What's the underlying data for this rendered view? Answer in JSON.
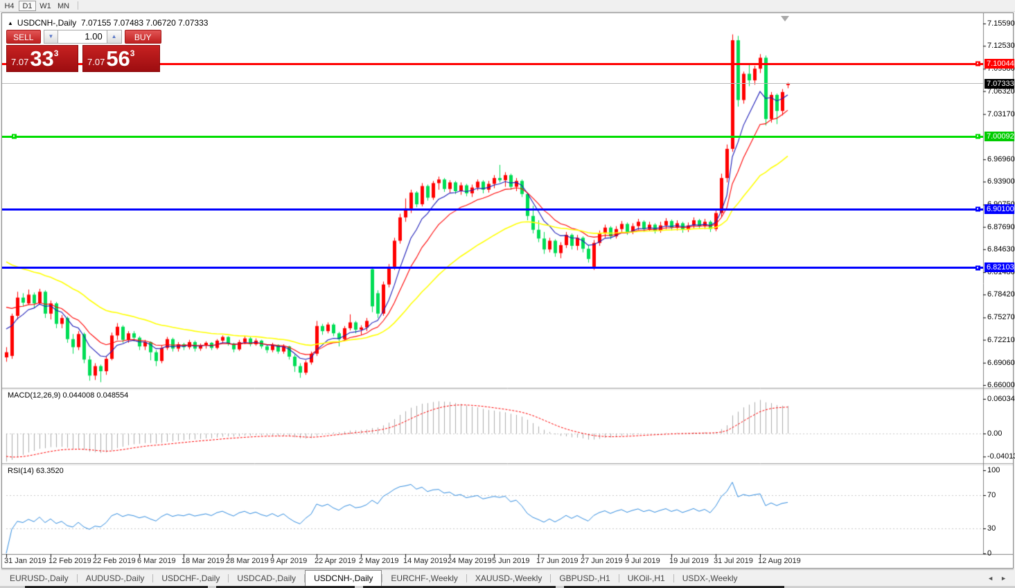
{
  "toolbar": {
    "timeframes": [
      "H4",
      "D1",
      "W1",
      "MN"
    ],
    "active": "D1"
  },
  "chart": {
    "symbol_period": "USDCNH-,Daily",
    "ohlc_line": "7.07155 7.07483 7.06720 7.07333",
    "collapse_arrow": "▲"
  },
  "trade_panel": {
    "sell_label": "SELL",
    "buy_label": "BUY",
    "volume": "1.00",
    "spin_down": "▼",
    "spin_up": "▲",
    "bid": {
      "prefix": "7.07",
      "big": "33",
      "sup": "3"
    },
    "ask": {
      "prefix": "7.07",
      "big": "56",
      "sup": "3"
    }
  },
  "macd_panel": {
    "label": "MACD(12,26,9) 0.044008 0.048554"
  },
  "rsi_panel": {
    "label": "RSI(14) 63.3520"
  },
  "tabs": {
    "items": [
      "EURUSD-,Daily",
      "AUDUSD-,Daily",
      "USDCHF-,Daily",
      "USDCAD-,Daily",
      "USDCNH-,Daily",
      "EURCHF-,Weekly",
      "XAUUSD-,Weekly",
      "GBPUSD-,H1",
      "UKOil-,H1",
      "USDX-,Weekly"
    ],
    "active": "USDCNH-,Daily",
    "arrow_left": "◄",
    "arrow_right": "►"
  },
  "chart_data": {
    "type": "candlestick",
    "title": "USDCNH-,Daily",
    "colors": {
      "bull": "#ff0000",
      "bear": "#00dd55",
      "ma_fast": "#1a1ab8",
      "ma_mid": "#ff0000",
      "ma_slow": "#ffff00",
      "macd_hist": "#ababab",
      "macd_signal": "#ff0000",
      "rsi_line": "#2e8be0",
      "level_dotted": "#c8c8c8",
      "axis_line": "#808080",
      "bid_line": "#b8b8b8"
    },
    "ylim": [
      6.66,
      7.1559
    ],
    "price_axis_ticks": [
      {
        "label": "7.15590",
        "value": 7.1559
      },
      {
        "label": "7.12530",
        "value": 7.1253
      },
      {
        "label": "7.09380",
        "value": 7.0938
      },
      {
        "label": "7.06320",
        "value": 7.0632
      },
      {
        "label": "7.03170",
        "value": 7.0317
      },
      {
        "label": "6.96960",
        "value": 6.9696
      },
      {
        "label": "6.93900",
        "value": 6.939
      },
      {
        "label": "6.90750",
        "value": 6.9075
      },
      {
        "label": "6.87690",
        "value": 6.8769
      },
      {
        "label": "6.84630",
        "value": 6.8463
      },
      {
        "label": "6.81480",
        "value": 6.8148
      },
      {
        "label": "6.78420",
        "value": 6.7842
      },
      {
        "label": "6.75270",
        "value": 6.7527
      },
      {
        "label": "6.72210",
        "value": 6.7221
      },
      {
        "label": "6.69060",
        "value": 6.6906
      },
      {
        "label": "6.66000",
        "value": 6.66
      }
    ],
    "hlines": [
      {
        "value": 7.10044,
        "label": "7.10044",
        "color": "#ff0000",
        "badge_bg": "#ff0000",
        "thickness": 3,
        "handles": [
          "right"
        ]
      },
      {
        "value": 7.07333,
        "label": "7.07333",
        "color": "#b8b8b8",
        "badge_bg": "#000000",
        "thickness": 1,
        "handles": []
      },
      {
        "value": 7.00092,
        "label": "7.00092",
        "color": "#00dd00",
        "badge_bg": "#00cc00",
        "thickness": 3,
        "handles": [
          "left",
          "right"
        ]
      },
      {
        "value": 6.901,
        "label": "6.90100",
        "color": "#0000ff",
        "badge_bg": "#0000ff",
        "thickness": 3,
        "handles": [
          "right"
        ]
      },
      {
        "value": 6.82103,
        "label": "6.82103",
        "color": "#0000ff",
        "badge_bg": "#0000ff",
        "thickness": 3,
        "handles": [
          "right"
        ]
      }
    ],
    "moving_averages": [
      {
        "period": 7,
        "color_key": "ma_fast"
      },
      {
        "period": 13,
        "color_key": "ma_mid"
      },
      {
        "period": 34,
        "color_key": "ma_slow"
      }
    ],
    "macd": {
      "fast": 12,
      "slow": 26,
      "signal": 9,
      "current_macd": 0.044008,
      "current_signal": 0.048554,
      "axis_ticks": [
        {
          "label": "0.060343",
          "value": 0.060343
        },
        {
          "label": "0.00",
          "value": 0.0
        },
        {
          "label": "-0.040136",
          "value": -0.040136
        }
      ]
    },
    "rsi": {
      "period": 14,
      "current": 63.352,
      "levels": [
        30,
        70
      ],
      "axis_ticks": [
        {
          "label": "100",
          "value": 100
        },
        {
          "label": "70",
          "value": 70
        },
        {
          "label": "30",
          "value": 30
        },
        {
          "label": "0",
          "value": 0
        }
      ]
    },
    "x_labels": [
      {
        "i": 0,
        "label": "31 Jan 2019"
      },
      {
        "i": 8,
        "label": "12 Feb 2019"
      },
      {
        "i": 16,
        "label": "22 Feb 2019"
      },
      {
        "i": 24,
        "label": "6 Mar 2019"
      },
      {
        "i": 32,
        "label": "18 Mar 2019"
      },
      {
        "i": 40,
        "label": "28 Mar 2019"
      },
      {
        "i": 48,
        "label": "9 Apr 2019"
      },
      {
        "i": 56,
        "label": "22 Apr 2019"
      },
      {
        "i": 64,
        "label": "2 May 2019"
      },
      {
        "i": 72,
        "label": "14 May 2019"
      },
      {
        "i": 80,
        "label": "24 May 2019"
      },
      {
        "i": 88,
        "label": "5 Jun 2019"
      },
      {
        "i": 96,
        "label": "17 Jun 2019"
      },
      {
        "i": 104,
        "label": "27 Jun 2019"
      },
      {
        "i": 112,
        "label": "9 Jul 2019"
      },
      {
        "i": 120,
        "label": "19 Jul 2019"
      },
      {
        "i": 128,
        "label": "31 Jul 2019"
      },
      {
        "i": 136,
        "label": "12 Aug 2019"
      }
    ],
    "indicator_warmup_closes": [
      6.935,
      6.928,
      6.92,
      6.912,
      6.905,
      6.898,
      6.89,
      6.882,
      6.875,
      6.868,
      6.862,
      6.855,
      6.848,
      6.84,
      6.832,
      6.825,
      6.818,
      6.81,
      6.8,
      6.79,
      6.78,
      6.768,
      6.755,
      6.74,
      6.722,
      6.705
    ],
    "candles": [
      [
        6.698,
        6.712,
        6.692,
        6.705
      ],
      [
        6.7,
        6.758,
        6.696,
        6.755
      ],
      [
        6.755,
        6.788,
        6.75,
        6.78
      ],
      [
        6.78,
        6.786,
        6.768,
        6.773
      ],
      [
        6.772,
        6.791,
        6.77,
        6.784
      ],
      [
        6.784,
        6.787,
        6.766,
        6.772
      ],
      [
        6.772,
        6.792,
        6.77,
        6.788
      ],
      [
        6.788,
        6.79,
        6.752,
        6.758
      ],
      [
        6.758,
        6.776,
        6.75,
        6.772
      ],
      [
        6.772,
        6.774,
        6.738,
        6.744
      ],
      [
        6.744,
        6.756,
        6.738,
        6.752
      ],
      [
        6.752,
        6.754,
        6.718,
        6.723
      ],
      [
        6.723,
        6.73,
        6.703,
        6.712
      ],
      [
        6.712,
        6.734,
        6.708,
        6.73
      ],
      [
        6.73,
        6.732,
        6.69,
        6.695
      ],
      [
        6.695,
        6.7,
        6.666,
        6.673
      ],
      [
        6.673,
        6.69,
        6.667,
        6.686
      ],
      [
        6.686,
        6.688,
        6.664,
        6.679
      ],
      [
        6.679,
        6.7,
        6.674,
        6.696
      ],
      [
        6.696,
        6.732,
        6.694,
        6.728
      ],
      [
        6.728,
        6.745,
        6.722,
        6.74
      ],
      [
        6.74,
        6.742,
        6.718,
        6.722
      ],
      [
        6.722,
        6.734,
        6.718,
        6.731
      ],
      [
        6.731,
        6.734,
        6.72,
        6.725
      ],
      [
        6.725,
        6.727,
        6.708,
        6.713
      ],
      [
        6.713,
        6.722,
        6.708,
        6.719
      ],
      [
        6.719,
        6.72,
        6.694,
        6.705
      ],
      [
        6.705,
        6.708,
        6.686,
        6.693
      ],
      [
        6.693,
        6.714,
        6.69,
        6.711
      ],
      [
        6.711,
        6.726,
        6.708,
        6.723
      ],
      [
        6.723,
        6.725,
        6.706,
        6.71
      ],
      [
        6.71,
        6.719,
        6.706,
        6.716
      ],
      [
        6.716,
        6.718,
        6.708,
        6.712
      ],
      [
        6.712,
        6.722,
        6.709,
        6.719
      ],
      [
        6.719,
        6.721,
        6.706,
        6.71
      ],
      [
        6.71,
        6.717,
        6.707,
        6.714
      ],
      [
        6.714,
        6.72,
        6.71,
        6.718
      ],
      [
        6.718,
        6.719,
        6.708,
        6.711
      ],
      [
        6.711,
        6.723,
        6.709,
        6.721
      ],
      [
        6.721,
        6.728,
        6.717,
        6.726
      ],
      [
        6.726,
        6.727,
        6.714,
        6.717
      ],
      [
        6.717,
        6.718,
        6.705,
        6.709
      ],
      [
        6.709,
        6.722,
        6.707,
        6.719
      ],
      [
        6.719,
        6.727,
        6.716,
        6.724
      ],
      [
        6.724,
        6.726,
        6.713,
        6.716
      ],
      [
        6.716,
        6.724,
        6.714,
        6.721
      ],
      [
        6.721,
        6.722,
        6.71,
        6.713
      ],
      [
        6.713,
        6.716,
        6.704,
        6.708
      ],
      [
        6.708,
        6.718,
        6.705,
        6.715
      ],
      [
        6.715,
        6.716,
        6.703,
        6.706
      ],
      [
        6.706,
        6.716,
        6.703,
        6.713
      ],
      [
        6.713,
        6.714,
        6.695,
        6.699
      ],
      [
        6.699,
        6.702,
        6.678,
        6.686
      ],
      [
        6.686,
        6.69,
        6.67,
        6.677
      ],
      [
        6.677,
        6.694,
        6.674,
        6.691
      ],
      [
        6.691,
        6.706,
        6.688,
        6.703
      ],
      [
        6.703,
        6.748,
        6.7,
        6.741
      ],
      [
        6.741,
        6.744,
        6.729,
        6.734
      ],
      [
        6.734,
        6.746,
        6.731,
        6.743
      ],
      [
        6.743,
        6.745,
        6.727,
        6.731
      ],
      [
        6.731,
        6.733,
        6.713,
        6.723
      ],
      [
        6.723,
        6.741,
        6.72,
        6.738
      ],
      [
        6.738,
        6.757,
        6.735,
        6.746
      ],
      [
        6.746,
        6.748,
        6.731,
        6.736
      ],
      [
        6.736,
        6.742,
        6.729,
        6.739
      ],
      [
        6.739,
        6.752,
        6.734,
        6.748
      ],
      [
        6.819,
        6.822,
        6.76,
        6.768
      ],
      [
        6.786,
        6.79,
        6.752,
        6.758
      ],
      [
        6.758,
        6.802,
        6.755,
        6.798
      ],
      [
        6.798,
        6.826,
        6.794,
        6.822
      ],
      [
        6.822,
        6.862,
        6.818,
        6.858
      ],
      [
        6.858,
        6.895,
        6.854,
        6.89
      ],
      [
        6.89,
        6.916,
        6.884,
        6.902
      ],
      [
        6.902,
        6.928,
        6.896,
        6.924
      ],
      [
        6.924,
        6.926,
        6.904,
        6.908
      ],
      [
        6.908,
        6.937,
        6.905,
        6.933
      ],
      [
        6.933,
        6.935,
        6.913,
        6.917
      ],
      [
        6.917,
        6.94,
        6.914,
        6.937
      ],
      [
        6.937,
        6.946,
        6.928,
        6.942
      ],
      [
        6.942,
        6.944,
        6.925,
        6.929
      ],
      [
        6.929,
        6.941,
        6.924,
        6.938
      ],
      [
        6.938,
        6.94,
        6.922,
        6.926
      ],
      [
        6.926,
        6.938,
        6.921,
        6.934
      ],
      [
        6.934,
        6.936,
        6.919,
        6.923
      ],
      [
        6.923,
        6.935,
        6.918,
        6.931
      ],
      [
        6.931,
        6.942,
        6.927,
        6.939
      ],
      [
        6.939,
        6.941,
        6.923,
        6.928
      ],
      [
        6.928,
        6.94,
        6.924,
        6.936
      ],
      [
        6.936,
        6.948,
        6.93,
        6.944
      ],
      [
        6.944,
        6.962,
        6.938,
        6.941
      ],
      [
        6.941,
        6.952,
        6.932,
        6.948
      ],
      [
        6.948,
        6.95,
        6.928,
        6.932
      ],
      [
        6.932,
        6.944,
        6.926,
        6.94
      ],
      [
        6.94,
        6.942,
        6.918,
        6.922
      ],
      [
        6.922,
        6.924,
        6.886,
        6.892
      ],
      [
        6.892,
        6.906,
        6.868,
        6.873
      ],
      [
        6.873,
        6.886,
        6.856,
        6.861
      ],
      [
        6.861,
        6.87,
        6.84,
        6.846
      ],
      [
        6.846,
        6.862,
        6.842,
        6.858
      ],
      [
        6.858,
        6.86,
        6.836,
        6.841
      ],
      [
        6.841,
        6.856,
        6.834,
        6.852
      ],
      [
        6.852,
        6.87,
        6.848,
        6.866
      ],
      [
        6.866,
        6.868,
        6.846,
        6.851
      ],
      [
        6.851,
        6.866,
        6.845,
        6.862
      ],
      [
        6.862,
        6.864,
        6.842,
        6.847
      ],
      [
        6.847,
        6.852,
        6.828,
        6.833
      ],
      [
        6.822,
        6.859,
        6.818,
        6.855
      ],
      [
        6.855,
        6.872,
        6.851,
        6.868
      ],
      [
        6.868,
        6.88,
        6.862,
        6.876
      ],
      [
        6.876,
        6.878,
        6.86,
        6.864
      ],
      [
        6.864,
        6.878,
        6.861,
        6.874
      ],
      [
        6.874,
        6.885,
        6.869,
        6.881
      ],
      [
        6.881,
        6.883,
        6.866,
        6.87
      ],
      [
        6.87,
        6.882,
        6.867,
        6.878
      ],
      [
        6.878,
        6.888,
        6.873,
        6.884
      ],
      [
        6.884,
        6.886,
        6.87,
        6.874
      ],
      [
        6.874,
        6.884,
        6.871,
        6.88
      ],
      [
        6.88,
        6.882,
        6.868,
        6.872
      ],
      [
        6.872,
        6.884,
        6.869,
        6.879
      ],
      [
        6.879,
        6.889,
        6.874,
        6.885
      ],
      [
        6.885,
        6.887,
        6.872,
        6.876
      ],
      [
        6.876,
        6.886,
        6.872,
        6.882
      ],
      [
        6.882,
        6.884,
        6.869,
        6.873
      ],
      [
        6.873,
        6.883,
        6.87,
        6.879
      ],
      [
        6.879,
        6.89,
        6.875,
        6.886
      ],
      [
        6.886,
        6.888,
        6.874,
        6.878
      ],
      [
        6.878,
        6.888,
        6.874,
        6.884
      ],
      [
        6.884,
        6.886,
        6.87,
        6.874
      ],
      [
        6.874,
        6.9,
        6.871,
        6.896
      ],
      [
        6.896,
        6.95,
        6.89,
        6.944
      ],
      [
        6.944,
        6.99,
        6.938,
        6.984
      ],
      [
        6.984,
        7.141,
        6.98,
        7.133
      ],
      [
        7.133,
        7.139,
        7.042,
        7.051
      ],
      [
        7.051,
        7.09,
        7.046,
        7.087
      ],
      [
        7.087,
        7.1,
        7.07,
        7.078
      ],
      [
        7.078,
        7.098,
        7.072,
        7.094
      ],
      [
        7.094,
        7.114,
        7.088,
        7.109
      ],
      [
        7.109,
        7.112,
        7.016,
        7.025
      ],
      [
        7.025,
        7.062,
        7.02,
        7.058
      ],
      [
        7.058,
        7.06,
        7.018,
        7.036
      ],
      [
        7.036,
        7.066,
        7.03,
        7.062
      ],
      [
        7.07155,
        7.07483,
        7.0672,
        7.07333
      ]
    ]
  }
}
